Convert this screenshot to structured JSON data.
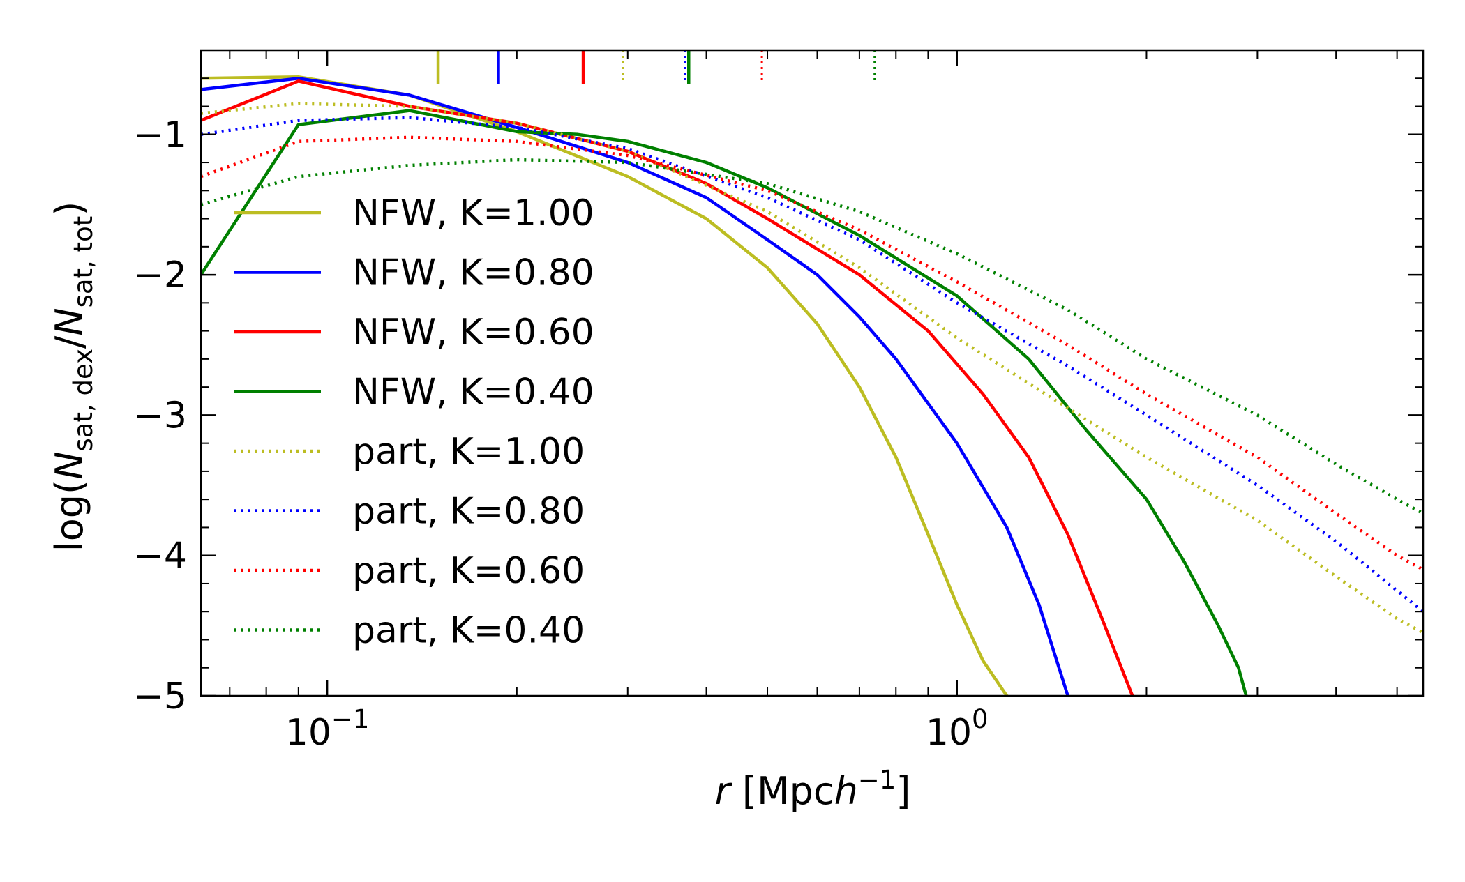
{
  "chart_data": {
    "type": "line",
    "title": "",
    "xlabel": "r [Mpc h^-1]",
    "ylabel": "log(N_sat,dex / N_sat,tot)",
    "xscale": "log",
    "xlim": [
      0.063,
      5.5
    ],
    "ylim": [
      -5,
      -0.4
    ],
    "grid": false,
    "legend_position": "left",
    "x_tick_labels": [
      {
        "value": 0.1,
        "base": "10",
        "exp": "−1"
      },
      {
        "value": 1.0,
        "base": "10",
        "exp": "0"
      }
    ],
    "y_tick_labels": [
      {
        "value": -1,
        "label": "−1"
      },
      {
        "value": -2,
        "label": "−2"
      },
      {
        "value": -3,
        "label": "−3"
      },
      {
        "value": -4,
        "label": "−4"
      },
      {
        "value": -5,
        "label": "−5"
      }
    ],
    "top_markers": [
      {
        "x": 0.15,
        "color": "#bcbd22",
        "style": "solid"
      },
      {
        "x": 0.187,
        "color": "#0000ff",
        "style": "solid"
      },
      {
        "x": 0.255,
        "color": "#ff0000",
        "style": "solid"
      },
      {
        "x": 0.295,
        "color": "#bcbd22",
        "style": "dotted"
      },
      {
        "x": 0.37,
        "color": "#0000ff",
        "style": "dotted"
      },
      {
        "x": 0.375,
        "color": "#008000",
        "style": "solid"
      },
      {
        "x": 0.49,
        "color": "#ff0000",
        "style": "dotted"
      },
      {
        "x": 0.74,
        "color": "#008000",
        "style": "dotted"
      }
    ],
    "series": [
      {
        "name": "NFW, K=1.00",
        "color": "#bcbd22",
        "style": "solid",
        "x": [
          0.063,
          0.09,
          0.135,
          0.2,
          0.3,
          0.4,
          0.5,
          0.6,
          0.7,
          0.8,
          0.9,
          1.0,
          1.1,
          1.2,
          1.25
        ],
        "y": [
          -0.6,
          -0.59,
          -0.72,
          -0.98,
          -1.3,
          -1.6,
          -1.95,
          -2.35,
          -2.8,
          -3.3,
          -3.85,
          -4.35,
          -4.75,
          -5.0,
          -5.05
        ]
      },
      {
        "name": "NFW, K=0.80",
        "color": "#0000ff",
        "style": "solid",
        "x": [
          0.063,
          0.09,
          0.135,
          0.2,
          0.3,
          0.4,
          0.5,
          0.6,
          0.7,
          0.8,
          1.0,
          1.2,
          1.35,
          1.5,
          1.55
        ],
        "y": [
          -0.68,
          -0.6,
          -0.72,
          -0.95,
          -1.2,
          -1.45,
          -1.75,
          -2.0,
          -2.3,
          -2.6,
          -3.2,
          -3.8,
          -4.35,
          -5.0,
          -5.1
        ]
      },
      {
        "name": "NFW, K=0.60",
        "color": "#ff0000",
        "style": "solid",
        "x": [
          0.063,
          0.09,
          0.135,
          0.2,
          0.3,
          0.4,
          0.5,
          0.7,
          0.9,
          1.1,
          1.3,
          1.5,
          1.7,
          1.9,
          1.95
        ],
        "y": [
          -0.9,
          -0.62,
          -0.8,
          -0.92,
          -1.12,
          -1.35,
          -1.6,
          -2.0,
          -2.4,
          -2.85,
          -3.3,
          -3.85,
          -4.45,
          -5.0,
          -5.1
        ]
      },
      {
        "name": "NFW, K=0.40",
        "color": "#008000",
        "style": "solid",
        "x": [
          0.063,
          0.09,
          0.135,
          0.2,
          0.25,
          0.3,
          0.4,
          0.5,
          0.7,
          1.0,
          1.3,
          1.6,
          2.0,
          2.3,
          2.6,
          2.8,
          2.9
        ],
        "y": [
          -2.0,
          -0.93,
          -0.83,
          -0.98,
          -1.0,
          -1.05,
          -1.2,
          -1.38,
          -1.72,
          -2.15,
          -2.6,
          -3.1,
          -3.6,
          -4.05,
          -4.5,
          -4.8,
          -5.05
        ]
      },
      {
        "name": "part, K=1.00",
        "color": "#bcbd22",
        "style": "dotted",
        "x": [
          0.063,
          0.09,
          0.135,
          0.2,
          0.3,
          0.5,
          0.7,
          1.0,
          1.5,
          2.0,
          3.0,
          4.0,
          5.0,
          5.5
        ],
        "y": [
          -0.85,
          -0.78,
          -0.8,
          -0.92,
          -1.12,
          -1.55,
          -1.95,
          -2.45,
          -2.95,
          -3.3,
          -3.75,
          -4.15,
          -4.45,
          -4.55
        ]
      },
      {
        "name": "part, K=0.80",
        "color": "#0000ff",
        "style": "dotted",
        "x": [
          0.063,
          0.09,
          0.135,
          0.2,
          0.3,
          0.5,
          0.7,
          1.0,
          1.5,
          2.0,
          3.0,
          4.0,
          5.0,
          5.5
        ],
        "y": [
          -1.0,
          -0.9,
          -0.88,
          -0.95,
          -1.1,
          -1.45,
          -1.75,
          -2.2,
          -2.65,
          -3.0,
          -3.5,
          -3.9,
          -4.25,
          -4.4
        ]
      },
      {
        "name": "part, K=0.60",
        "color": "#ff0000",
        "style": "dotted",
        "x": [
          0.063,
          0.09,
          0.135,
          0.2,
          0.3,
          0.5,
          0.7,
          1.0,
          1.5,
          2.0,
          3.0,
          4.0,
          5.0,
          5.5
        ],
        "y": [
          -1.3,
          -1.05,
          -1.02,
          -1.05,
          -1.15,
          -1.4,
          -1.68,
          -2.05,
          -2.5,
          -2.85,
          -3.3,
          -3.7,
          -4.0,
          -4.1
        ]
      },
      {
        "name": "part, K=0.40",
        "color": "#008000",
        "style": "dotted",
        "x": [
          0.063,
          0.09,
          0.135,
          0.2,
          0.3,
          0.5,
          0.7,
          1.0,
          1.5,
          2.0,
          3.0,
          4.0,
          5.0,
          5.5
        ],
        "y": [
          -1.5,
          -1.3,
          -1.22,
          -1.18,
          -1.2,
          -1.35,
          -1.55,
          -1.85,
          -2.25,
          -2.6,
          -3.0,
          -3.35,
          -3.6,
          -3.7
        ]
      }
    ]
  }
}
